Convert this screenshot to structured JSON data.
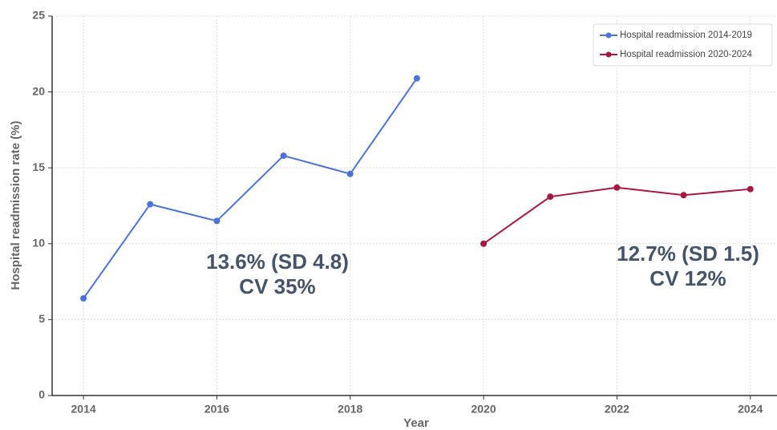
{
  "chart_data": {
    "type": "line",
    "x_label": "Year",
    "y_label": "Hospital readmission rate (%)",
    "series": [
      {
        "name": "Hospital readmission 2014-2019",
        "color": "#4a72d9",
        "x": [
          2014,
          2015,
          2016,
          2017,
          2018,
          2019
        ],
        "values": [
          6.4,
          12.6,
          11.5,
          15.8,
          14.6,
          20.9
        ]
      },
      {
        "name": "Hospital readmission 2020-2024",
        "color": "#a8173f",
        "x": [
          2020,
          2021,
          2022,
          2023,
          2024
        ],
        "values": [
          10.0,
          13.1,
          13.7,
          13.2,
          13.6
        ]
      }
    ],
    "annotations": [
      {
        "lines": [
          "13.6% (SD 4.8)",
          "CV 35%"
        ]
      },
      {
        "lines": [
          "12.7% (SD 1.5)",
          "CV 12%"
        ]
      }
    ],
    "xlim": [
      2013.53,
      2024.4
    ],
    "xticks": [
      2014,
      2016,
      2018,
      2020,
      2022,
      2024
    ],
    "ylim": [
      0,
      25
    ],
    "yticks": [
      0,
      5,
      10,
      15,
      20,
      25
    ],
    "grid": true,
    "legend": "upper right"
  }
}
